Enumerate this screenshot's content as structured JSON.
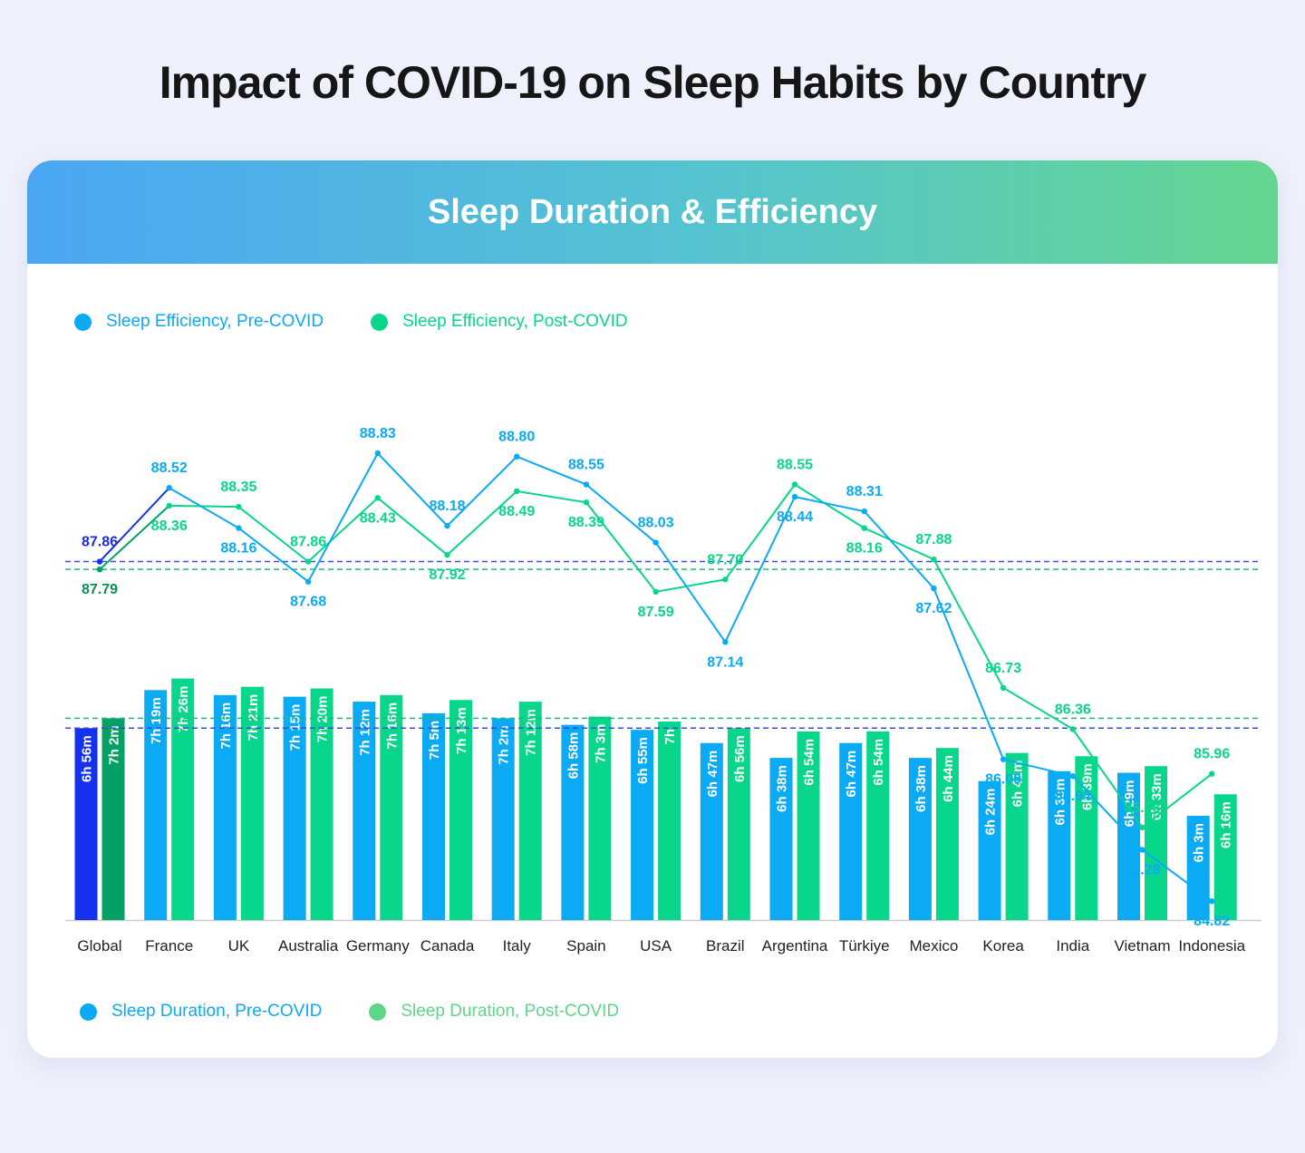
{
  "title": "Impact of COVID-19 on Sleep Habits by Country",
  "card_title": "Sleep Duration & Efficiency",
  "colors": {
    "pre": "#0aaaf5",
    "post": "#08d68a",
    "global_pre": "#1531ee",
    "global_post": "#04a065",
    "global_pre_label": "#1a2dd6",
    "global_post_label": "#0a8f4f",
    "ref_pre": "#3a4fd6",
    "ref_post": "#21b978",
    "axis": "#cccccc",
    "legend_dur_post": "#5fd58a"
  },
  "chart_data": {
    "type": "bar+line",
    "categories": [
      "Global",
      "France",
      "UK",
      "Australia",
      "Germany",
      "Canada",
      "Italy",
      "Spain",
      "USA",
      "Brazil",
      "Argentina",
      "Türkiye",
      "Mexico",
      "Korea",
      "India",
      "Vietnam",
      "Indonesia"
    ],
    "efficiency": {
      "legend": [
        "Sleep Efficiency, Pre-COVID",
        "Sleep Efficiency, Post-COVID"
      ],
      "pre": [
        87.86,
        88.52,
        88.16,
        87.68,
        88.83,
        88.18,
        88.8,
        88.55,
        88.03,
        87.14,
        88.44,
        88.31,
        87.62,
        86.09,
        85.94,
        85.28,
        84.82
      ],
      "post": [
        87.79,
        88.36,
        88.35,
        87.86,
        88.43,
        87.92,
        88.49,
        88.39,
        87.59,
        87.7,
        88.55,
        88.16,
        87.88,
        86.73,
        86.36,
        85.48,
        85.96
      ],
      "pre_labels": [
        "87.86",
        "88.52",
        "88.16",
        "87.68",
        "88.83",
        "88.18",
        "88.80",
        "88.55",
        "88.03",
        "87.14",
        "88.44",
        "88.31",
        "87.62",
        "86.09",
        "85.94",
        "85.28",
        "84.82"
      ],
      "post_labels": [
        "87.79",
        "88.36",
        "88.35",
        "87.86",
        "88.43",
        "87.92",
        "88.49",
        "88.39",
        "87.59",
        "87.70",
        "88.55",
        "88.16",
        "87.88",
        "86.73",
        "86.36",
        "85.48",
        "85.96"
      ],
      "reference_lines": [
        87.86,
        87.79
      ]
    },
    "duration": {
      "legend": [
        "Sleep Duration, Pre-COVID",
        "Sleep Duration, Post-COVID"
      ],
      "pre_minutes": [
        416,
        439,
        436,
        435,
        432,
        425,
        422,
        418,
        415,
        407,
        398,
        407,
        398,
        384,
        390,
        389,
        363
      ],
      "post_minutes": [
        422,
        446,
        441,
        440,
        436,
        433,
        432,
        423,
        420,
        416,
        414,
        414,
        404,
        401,
        399,
        393,
        376
      ],
      "pre_labels": [
        "6h 56m",
        "7h 19m",
        "7h 16m",
        "7h 15m",
        "7h 12m",
        "7h 5m",
        "7h 2m",
        "6h 58m",
        "6h 55m",
        "6h 47m",
        "6h 38m",
        "6h 47m",
        "6h 38m",
        "6h 24m",
        "6h 30m",
        "6h 29m",
        "6h 3m"
      ],
      "post_labels": [
        "7h 2m",
        "7h 26m",
        "7h 21m",
        "7h 20m",
        "7h 16m",
        "7h 13m",
        "7h 12m",
        "7h 3m",
        "7h",
        "6h 56m",
        "6h 54m",
        "6h 54m",
        "6h 44m",
        "6h 41m",
        "6h 39m",
        "6h 33m",
        "6h 16m"
      ],
      "reference_lines": [
        416,
        422
      ]
    }
  }
}
